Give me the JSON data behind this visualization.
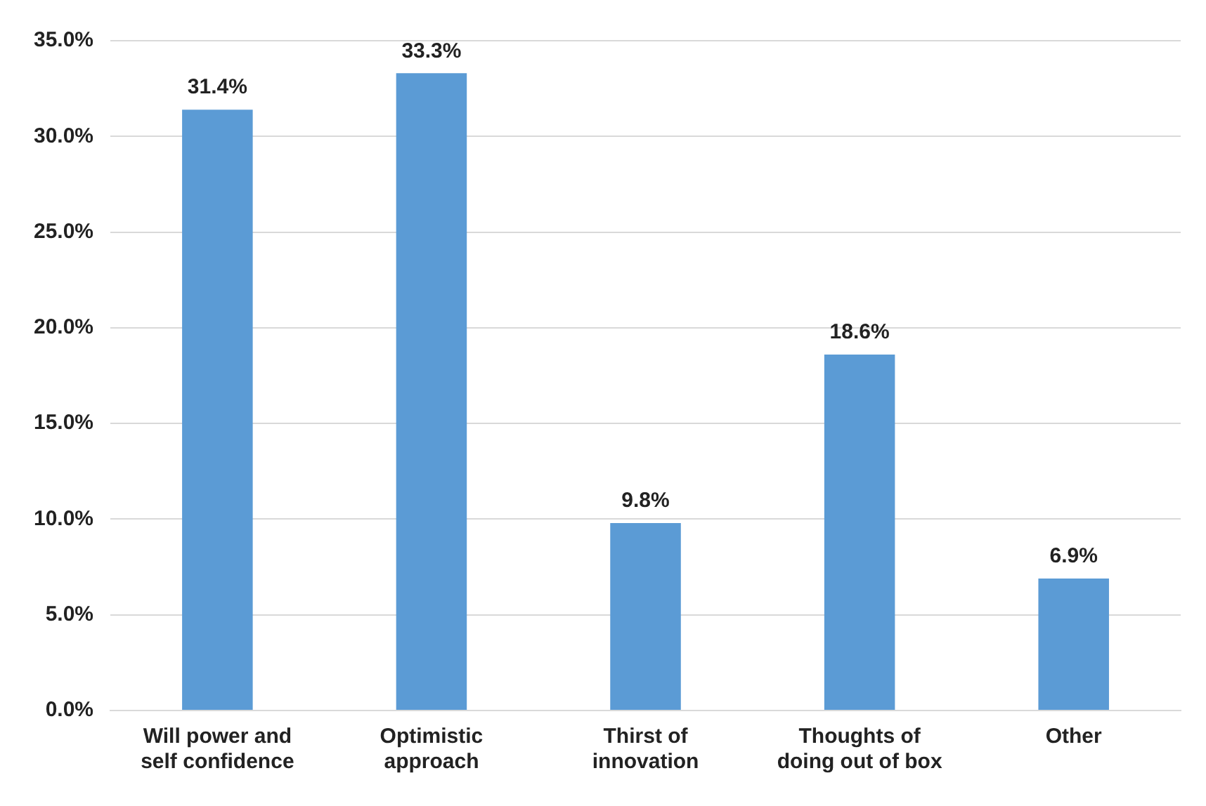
{
  "chart_data": {
    "type": "bar",
    "categories": [
      "Will power and self confidence",
      "Optimistic approach",
      "Thirst of innovation",
      "Thoughts of doing out of box",
      "Other"
    ],
    "values": [
      31.4,
      33.3,
      9.8,
      18.6,
      6.9
    ],
    "value_labels": [
      "31.4%",
      "33.3%",
      "9.8%",
      "18.6%",
      "6.9%"
    ],
    "color": "#5b9bd5",
    "ylim": [
      0,
      35
    ],
    "yticks": [
      {
        "value": 0,
        "label": "0.0%"
      },
      {
        "value": 5,
        "label": "5.0%"
      },
      {
        "value": 10,
        "label": "10.0%"
      },
      {
        "value": 15,
        "label": "15.0%"
      },
      {
        "value": 20,
        "label": "20.0%"
      },
      {
        "value": 25,
        "label": "25.0%"
      },
      {
        "value": 30,
        "label": "30.0%"
      },
      {
        "value": 35,
        "label": "35.0%"
      }
    ],
    "grid": "y",
    "legend": false
  }
}
